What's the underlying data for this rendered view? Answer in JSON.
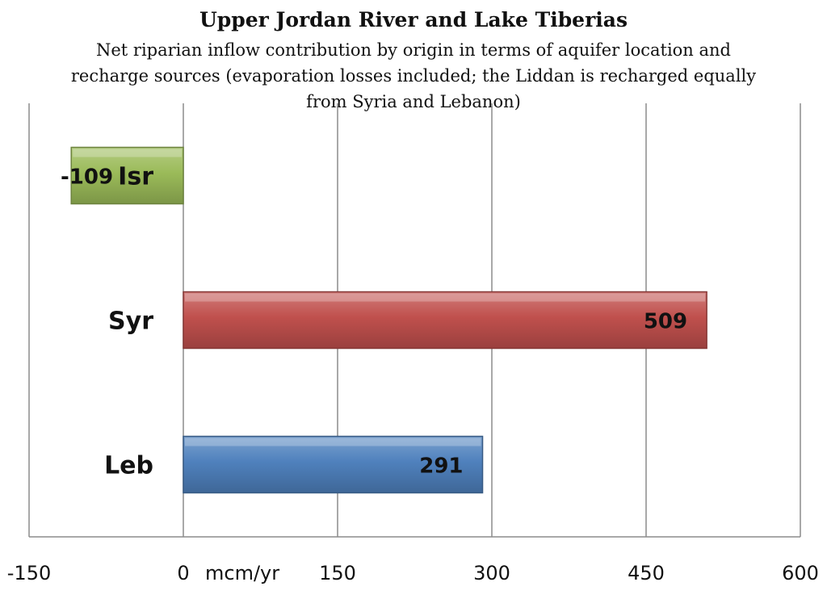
{
  "chart_data": {
    "type": "bar",
    "orientation": "horizontal",
    "title": "Upper Jordan River and Lake Tiberias",
    "subtitle": "Net riparian inflow contribution by origin in terms of aquifer location and recharge sources (evaporation losses included; the Liddan is recharged equally from Syria and Lebanon)",
    "xlabel": "mcm/yr",
    "ylabel": "",
    "categories": [
      "Isr",
      "Syr",
      "Leb"
    ],
    "values": [
      -109,
      509,
      291
    ],
    "data_labels": [
      "-109",
      "509",
      "291"
    ],
    "colors": [
      "#9bbb59",
      "#c0504d",
      "#4f81bd"
    ],
    "xlim": [
      -150,
      600
    ],
    "x_ticks": [
      -150,
      0,
      150,
      300,
      450,
      600
    ],
    "x_tick_labels": [
      "-150",
      "0",
      "150",
      "300",
      "450",
      "600"
    ],
    "grid": true,
    "legend": "none"
  }
}
